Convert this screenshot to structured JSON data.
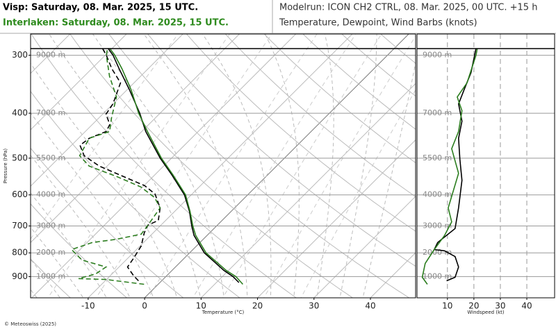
{
  "header": {
    "location_1": "Visp: Saturday, 08. Mar. 2025, 15 UTC.",
    "location_2": "Interlaken: Saturday, 08. Mar. 2025, 15 UTC.",
    "model_run": "Modelrun: ICON CH2 CTRL, 08. Mar. 2025, 00 UTC. +15 h",
    "description": "Temperature, Dewpoint, Wind Barbs (knots)"
  },
  "footer": "© Meteoswiss (2025)",
  "chart_data": [
    {
      "type": "skewt",
      "xlabel": "Temperature (°C)",
      "ylabel": "Pressure (hPa)",
      "xlim": [
        -20.2,
        48
      ],
      "ylim": [
        1000,
        270
      ],
      "log_y": true,
      "grid": true,
      "xticks": [
        -10,
        0,
        10,
        20,
        30,
        40
      ],
      "yticks": [
        300,
        400,
        500,
        600,
        700,
        800,
        900
      ],
      "altitude_labels": [
        {
          "value": 300,
          "label": "9000 m"
        },
        {
          "value": 400,
          "label": "7000 m"
        },
        {
          "value": 500,
          "label": "5500 m"
        },
        {
          "value": 600,
          "label": "4000 m"
        },
        {
          "value": 700,
          "label": "3000 m"
        },
        {
          "value": 800,
          "label": "2000 m"
        },
        {
          "value": 900,
          "label": "1000 m"
        }
      ],
      "series": [
        {
          "color": "#000000",
          "dashed": false,
          "pressure": [
            927,
            900,
            873,
            800,
            734,
            700,
            651,
            600,
            543,
            500,
            438,
            400,
            356,
            321,
            300,
            290
          ],
          "values": [
            14.0,
            11.9,
            9.2,
            2.6,
            -2.3,
            -4.4,
            -7.4,
            -11.2,
            -17.0,
            -22.0,
            -29.3,
            -33.6,
            -39.6,
            -45.1,
            -48.6,
            -50.7
          ]
        },
        {
          "color": "#2b7d1e",
          "dashed": false,
          "pressure": [
            935,
            900,
            873,
            800,
            734,
            700,
            651,
            600,
            543,
            500,
            438,
            400,
            356,
            321,
            300,
            290
          ],
          "values": [
            15.0,
            12.4,
            9.6,
            2.9,
            -2.0,
            -4.2,
            -7.3,
            -11.0,
            -16.8,
            -21.8,
            -29.0,
            -33.8,
            -39.3,
            -44.6,
            -48.3,
            -50.4
          ]
        },
        {
          "color": "#000000",
          "dashed": true,
          "pressure": [
            919,
            897,
            858,
            820,
            773,
            724,
            697,
            681,
            640,
            597,
            573,
            548,
            520,
            494,
            469,
            453,
            438,
            423,
            402,
            382,
            344,
            321,
            300,
            290
          ],
          "values": [
            -4.1,
            -5.8,
            -8.5,
            -9.0,
            -9.8,
            -11.6,
            -12.3,
            -11.3,
            -13.2,
            -16.6,
            -19.9,
            -25.2,
            -31.4,
            -35.9,
            -38.5,
            -38.1,
            -36.3,
            -36.9,
            -39.4,
            -40.0,
            -42.4,
            -46.4,
            -49.8,
            -51.7
          ]
        },
        {
          "color": "#2b7d1e",
          "dashed": true,
          "pressure": [
            935,
            913,
            909,
            888,
            858,
            829,
            787,
            760,
            748,
            729,
            697,
            640,
            608,
            577,
            548,
            520,
            494,
            453,
            438,
            409,
            369,
            333,
            300,
            290
          ],
          "values": [
            -2.5,
            -10.1,
            -15.1,
            -12.9,
            -12.3,
            -17.8,
            -21.5,
            -19.1,
            -15.4,
            -11.9,
            -12.3,
            -13.2,
            -16.0,
            -20.3,
            -26.4,
            -33.2,
            -36.7,
            -38.1,
            -35.7,
            -37.8,
            -40.6,
            -45.5,
            -49.8,
            -50.8
          ]
        }
      ]
    },
    {
      "type": "wind",
      "xlabel": "Windspeed (kt)",
      "xlim": [
        -1.5,
        50.5
      ],
      "ylim": [
        1000,
        270
      ],
      "log_y": true,
      "grid": true,
      "xticks": [
        10,
        20,
        30,
        40
      ],
      "yticks": [
        300,
        400,
        500,
        600,
        700,
        800,
        900
      ],
      "altitude_labels": [
        {
          "value": 300,
          "label": "9000 m"
        },
        {
          "value": 400,
          "label": "7000 m"
        },
        {
          "value": 500,
          "label": "5500 m"
        },
        {
          "value": 600,
          "label": "4000 m"
        },
        {
          "value": 700,
          "label": "3000 m"
        },
        {
          "value": 800,
          "label": "2000 m"
        },
        {
          "value": 900,
          "label": "1000 m"
        }
      ],
      "series": [
        {
          "color": "#000000",
          "pressure": [
            919,
            903,
            858,
            815,
            792,
            787,
            760,
            709,
            640,
            558,
            503,
            453,
            416,
            382,
            356,
            327,
            305,
            290
          ],
          "values": [
            9.7,
            12.9,
            14.2,
            12.9,
            8.9,
            5.0,
            6.3,
            12.9,
            14.2,
            15.5,
            14.7,
            14.2,
            15.5,
            14.2,
            16.3,
            18.9,
            20.0,
            20.8
          ]
        },
        {
          "color": "#2b7d1e",
          "pressure": [
            935,
            903,
            843,
            787,
            734,
            686,
            640,
            539,
            477,
            438,
            395,
            369,
            344,
            300,
            290
          ],
          "values": [
            2.4,
            0.5,
            1.6,
            5.0,
            8.9,
            11.6,
            10.3,
            14.2,
            11.6,
            14.2,
            15.5,
            13.7,
            17.4,
            20.8,
            21.3
          ]
        }
      ]
    }
  ]
}
